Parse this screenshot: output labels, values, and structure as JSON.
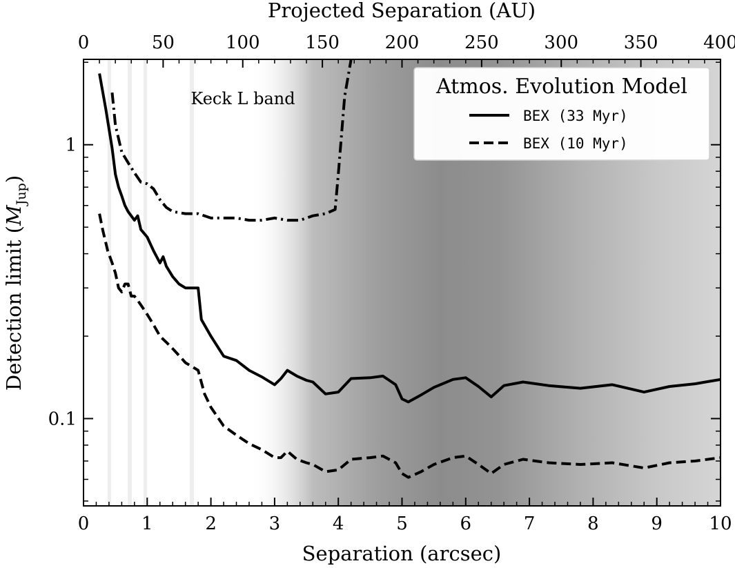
{
  "chart_data": {
    "type": "line",
    "title": "",
    "xlabel": "Separation (arcsec)",
    "ylabel_main": "Detection limit (",
    "ylabel_sym": "M",
    "ylabel_sub": "Jup",
    "ylabel_close": ")",
    "top_xlabel": "Projected Separation (AU)",
    "xlim": [
      0,
      10
    ],
    "ylim": [
      0.048,
      2.05
    ],
    "yscale": "log",
    "top_xlim_au": [
      0,
      400
    ],
    "x_ticks": [
      0,
      1,
      2,
      3,
      4,
      5,
      6,
      7,
      8,
      9,
      10
    ],
    "x_tick_labels": [
      "0",
      "1",
      "2",
      "3",
      "4",
      "5",
      "6",
      "7",
      "8",
      "9",
      "10"
    ],
    "top_x_ticks": [
      0,
      50,
      100,
      150,
      200,
      250,
      300,
      350,
      400
    ],
    "top_x_tick_labels": [
      "0",
      "50",
      "100",
      "150",
      "200",
      "250",
      "300",
      "350",
      "400"
    ],
    "y_ticks": [
      0.1,
      1
    ],
    "y_tick_labels": [
      "0.1",
      "1"
    ],
    "annotation": "Keck L band",
    "legend": {
      "title": "Atmos. Evolution Model",
      "placement": "top-right",
      "entries": [
        {
          "label": "BEX (33 Myr)",
          "style": "solid"
        },
        {
          "label": "BEX (10 Myr)",
          "style": "dashed"
        }
      ]
    },
    "series": [
      {
        "name": "BEX (33 Myr)",
        "style": "solid",
        "x": [
          0.25,
          0.35,
          0.45,
          0.5,
          0.55,
          0.6,
          0.65,
          0.7,
          0.8,
          0.85,
          0.9,
          1.0,
          1.1,
          1.2,
          1.25,
          1.3,
          1.4,
          1.5,
          1.6,
          1.7,
          1.8,
          1.85,
          2.0,
          2.2,
          2.4,
          2.6,
          2.8,
          3.0,
          3.1,
          3.2,
          3.35,
          3.5,
          3.6,
          3.8,
          4.0,
          4.2,
          4.5,
          4.7,
          4.9,
          5.0,
          5.1,
          5.3,
          5.5,
          5.8,
          6.0,
          6.2,
          6.4,
          6.6,
          6.9,
          7.3,
          7.8,
          8.3,
          8.8,
          9.2,
          9.6,
          10.0
        ],
        "values": [
          1.82,
          1.35,
          0.97,
          0.78,
          0.7,
          0.65,
          0.6,
          0.57,
          0.53,
          0.55,
          0.49,
          0.46,
          0.41,
          0.37,
          0.39,
          0.36,
          0.33,
          0.31,
          0.3,
          0.3,
          0.3,
          0.23,
          0.2,
          0.169,
          0.163,
          0.15,
          0.142,
          0.133,
          0.14,
          0.15,
          0.143,
          0.138,
          0.136,
          0.123,
          0.125,
          0.14,
          0.141,
          0.143,
          0.133,
          0.118,
          0.115,
          0.122,
          0.13,
          0.139,
          0.141,
          0.131,
          0.12,
          0.132,
          0.136,
          0.132,
          0.129,
          0.133,
          0.125,
          0.131,
          0.134,
          0.139
        ]
      },
      {
        "name": "BEX (10 Myr)",
        "style": "dashed",
        "x": [
          0.25,
          0.3,
          0.38,
          0.45,
          0.5,
          0.55,
          0.6,
          0.65,
          0.7,
          0.75,
          0.8,
          0.85,
          0.9,
          1.0,
          1.1,
          1.2,
          1.3,
          1.4,
          1.5,
          1.6,
          1.7,
          1.8,
          1.9,
          2.0,
          2.2,
          2.4,
          2.6,
          2.8,
          3.0,
          3.1,
          3.2,
          3.35,
          3.5,
          3.6,
          3.8,
          4.0,
          4.2,
          4.5,
          4.7,
          4.9,
          5.0,
          5.1,
          5.3,
          5.5,
          5.8,
          6.0,
          6.2,
          6.4,
          6.6,
          6.9,
          7.3,
          7.8,
          8.3,
          8.8,
          9.2,
          9.6,
          10.0
        ],
        "values": [
          0.56,
          0.49,
          0.41,
          0.37,
          0.34,
          0.3,
          0.29,
          0.31,
          0.31,
          0.28,
          0.28,
          0.27,
          0.26,
          0.24,
          0.22,
          0.2,
          0.19,
          0.18,
          0.17,
          0.16,
          0.155,
          0.15,
          0.123,
          0.11,
          0.094,
          0.087,
          0.081,
          0.077,
          0.072,
          0.072,
          0.076,
          0.071,
          0.069,
          0.068,
          0.064,
          0.065,
          0.071,
          0.072,
          0.073,
          0.069,
          0.063,
          0.061,
          0.064,
          0.068,
          0.072,
          0.073,
          0.068,
          0.063,
          0.068,
          0.071,
          0.069,
          0.068,
          0.069,
          0.066,
          0.069,
          0.07,
          0.072
        ]
      },
      {
        "name": "Keck L band",
        "style": "dashdot",
        "x": [
          0.45,
          0.5,
          0.6,
          0.7,
          0.8,
          0.9,
          1.0,
          1.1,
          1.2,
          1.3,
          1.4,
          1.6,
          1.8,
          2.0,
          2.2,
          2.4,
          2.6,
          2.8,
          3.0,
          3.2,
          3.4,
          3.6,
          3.8,
          3.95,
          4.0,
          4.1,
          4.2
        ],
        "values": [
          1.55,
          1.18,
          0.94,
          0.86,
          0.79,
          0.73,
          0.72,
          0.69,
          0.63,
          0.59,
          0.57,
          0.56,
          0.56,
          0.54,
          0.54,
          0.54,
          0.53,
          0.53,
          0.54,
          0.53,
          0.53,
          0.55,
          0.56,
          0.58,
          0.78,
          1.5,
          2.05
        ]
      }
    ]
  }
}
